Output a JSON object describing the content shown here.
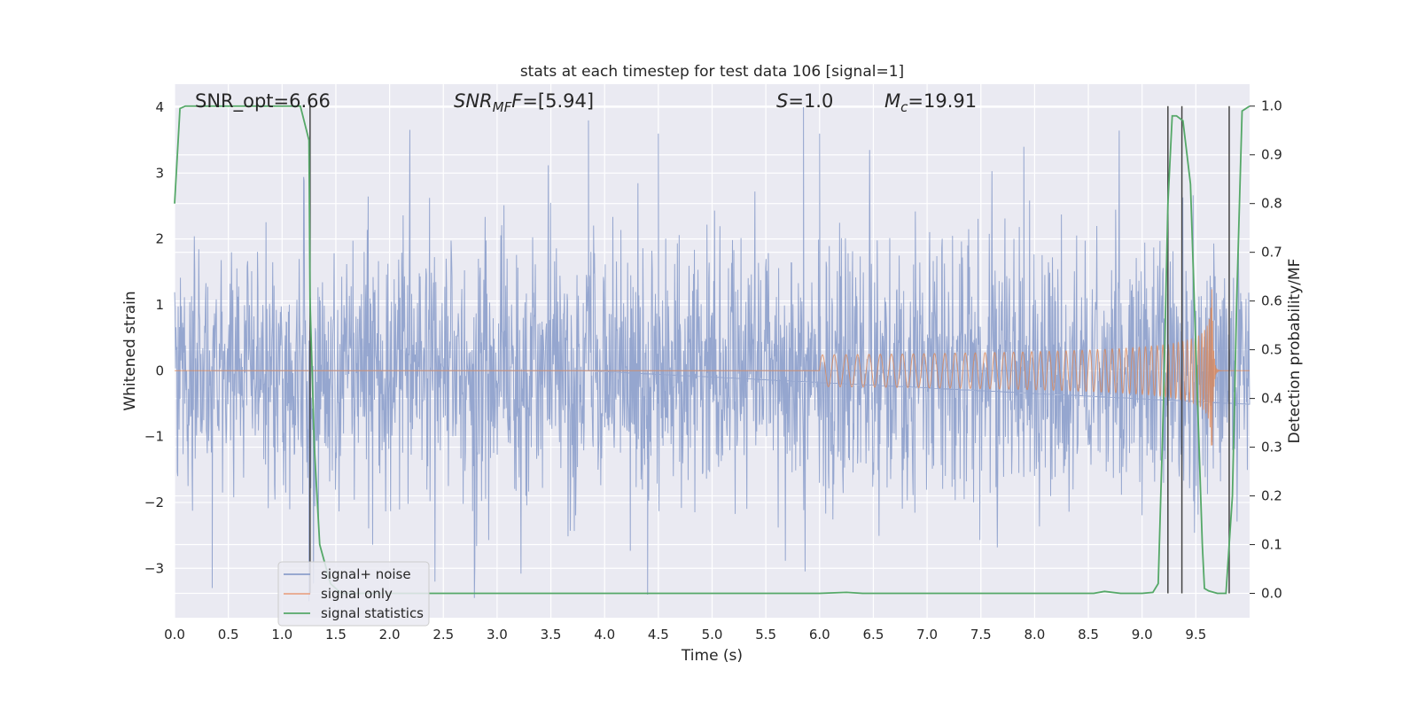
{
  "chart_data": {
    "type": "line",
    "title": "stats at each timestep for test data 106 [signal=1]",
    "xlabel": "Time (s)",
    "ylabel_left": "Whitened strain",
    "ylabel_right": "Detection probability/MF",
    "xlim": [
      0.0,
      10.0
    ],
    "ylim_left": [
      -3.75,
      4.35
    ],
    "ylim_right": [
      -0.05,
      1.045
    ],
    "x_ticks": [
      "0.0",
      "0.5",
      "1.0",
      "1.5",
      "2.0",
      "2.5",
      "3.0",
      "3.5",
      "4.0",
      "4.5",
      "5.0",
      "5.5",
      "6.0",
      "6.5",
      "7.0",
      "7.5",
      "8.0",
      "8.5",
      "9.0",
      "9.5"
    ],
    "y_left_ticks": [
      "4",
      "3",
      "2",
      "1",
      "0",
      "−1",
      "−2",
      "−3"
    ],
    "y_right_ticks": [
      "1.0",
      "0.9",
      "0.8",
      "0.7",
      "0.6",
      "0.5",
      "0.4",
      "0.3",
      "0.2",
      "0.1",
      "0.0"
    ],
    "annotations": {
      "snr_opt": "SNR_opt=6.66",
      "snr_mf_sym": "SNR",
      "snr_mf_sub": "MF",
      "snr_mf_val": "=[5.94]",
      "s_sym": "S",
      "s_val": "=1.0",
      "mc_sym": "M",
      "mc_sub": "c",
      "mc_val": "=19.91"
    },
    "legend": {
      "placement": "lower-left",
      "entries": [
        {
          "label": "signal+ noise",
          "color": "#8c9fcb"
        },
        {
          "label": "signal only",
          "color": "#e8a689"
        },
        {
          "label": "signal statistics",
          "color": "#55a868"
        }
      ]
    },
    "colors": {
      "background": "#eaeaf2",
      "grid": "#ffffff",
      "noise": "#8c9fcb",
      "signal": "#dd8452",
      "stat": "#55a868",
      "vline": "#444444"
    },
    "noise": {
      "description_amplitude": "values mostly within ±2, peaks to about ±4",
      "peaks": [
        {
          "t": 3.85,
          "v": 3.8
        },
        {
          "t": 4.5,
          "v": 3.6
        },
        {
          "t": 5.85,
          "v": 4.0
        },
        {
          "t": 6.0,
          "v": 3.6
        },
        {
          "t": 7.9,
          "v": 3.4
        },
        {
          "t": 4.4,
          "v": -3.4
        },
        {
          "t": 0.35,
          "v": -3.3
        },
        {
          "t": 1.25,
          "v": -3.5
        }
      ]
    },
    "signal_only": {
      "chirp_start": 6.0,
      "merger_time": 9.65,
      "peak_amplitude": 1.35
    },
    "signal_statistics": {
      "t": [
        0.0,
        0.05,
        0.1,
        0.2,
        1.0,
        1.17,
        1.25,
        1.26,
        1.3,
        1.35,
        1.45,
        1.55,
        2.0,
        3.0,
        4.0,
        5.0,
        6.0,
        6.25,
        6.4,
        7.0,
        8.0,
        8.55,
        8.65,
        8.8,
        9.0,
        9.1,
        9.15,
        9.2,
        9.24,
        9.28,
        9.32,
        9.38,
        9.45,
        9.5,
        9.56,
        9.58,
        9.62,
        9.7,
        9.78,
        9.84,
        9.88,
        9.93,
        10.0
      ],
      "p": [
        0.8,
        0.995,
        1.0,
        1.0,
        1.0,
        1.0,
        0.93,
        0.6,
        0.3,
        0.1,
        0.02,
        0.0,
        0.0,
        0.0,
        0.0,
        0.0,
        0.0,
        0.002,
        0.0,
        0.0,
        0.0,
        0.0,
        0.004,
        0.0,
        0.0,
        0.002,
        0.02,
        0.4,
        0.8,
        0.98,
        0.98,
        0.97,
        0.84,
        0.5,
        0.1,
        0.01,
        0.005,
        0.0,
        0.0,
        0.2,
        0.6,
        0.99,
        1.0
      ]
    },
    "vertical_lines": [
      1.26,
      9.24,
      9.37,
      9.81
    ]
  }
}
